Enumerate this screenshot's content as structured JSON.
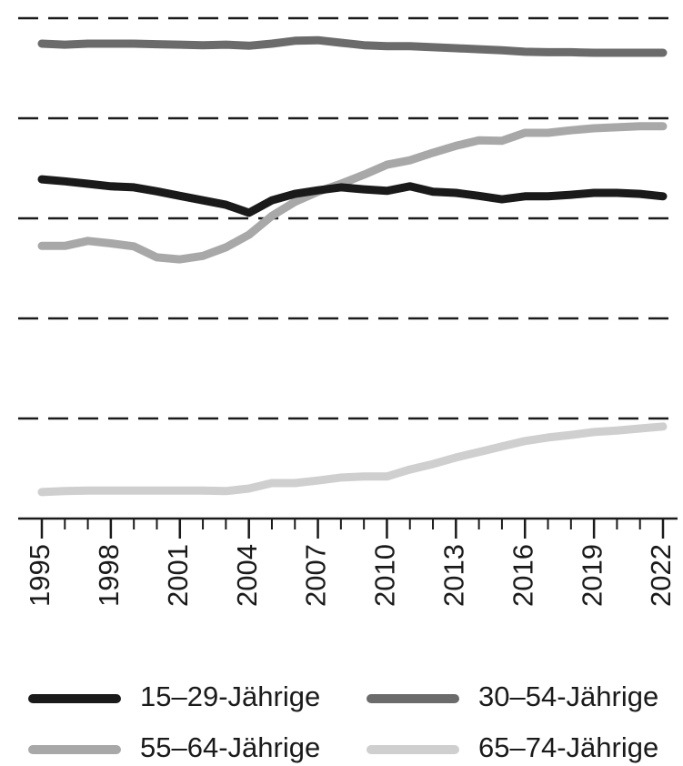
{
  "chart_data": {
    "type": "line",
    "x": [
      1995,
      1996,
      1997,
      1998,
      1999,
      2000,
      2001,
      2002,
      2003,
      2004,
      2005,
      2006,
      2007,
      2008,
      2009,
      2010,
      2011,
      2012,
      2013,
      2014,
      2015,
      2016,
      2017,
      2018,
      2019,
      2020,
      2021,
      2022
    ],
    "xlim": [
      1995,
      2022
    ],
    "xticks": [
      1995,
      1998,
      2001,
      2004,
      2007,
      2010,
      2013,
      2016,
      2019,
      2022
    ],
    "ylim": [
      0,
      100
    ],
    "yticks": [
      20,
      40,
      60,
      80,
      100
    ],
    "grid": true,
    "series": [
      {
        "name": "15–29-Jährige",
        "color": "#1a1a1a",
        "values": [
          67.8,
          67.4,
          66.9,
          66.4,
          66.2,
          65.4,
          64.5,
          63.6,
          62.7,
          61.1,
          63.6,
          64.9,
          65.6,
          66.2,
          65.8,
          65.5,
          66.4,
          65.3,
          65.1,
          64.5,
          63.8,
          64.4,
          64.4,
          64.7,
          65.1,
          65.1,
          64.9,
          64.4
        ]
      },
      {
        "name": "30–54-Jährige",
        "color": "#6b6b6b",
        "values": [
          94.9,
          94.7,
          94.9,
          94.9,
          94.9,
          94.8,
          94.7,
          94.6,
          94.7,
          94.5,
          94.9,
          95.5,
          95.6,
          95.1,
          94.6,
          94.4,
          94.4,
          94.2,
          94.0,
          93.8,
          93.6,
          93.3,
          93.2,
          93.2,
          93.1,
          93.1,
          93.1,
          93.1
        ]
      },
      {
        "name": "55–64-Jährige",
        "color": "#a8a8a8",
        "values": [
          54.5,
          54.5,
          55.5,
          55.0,
          54.4,
          52.2,
          51.8,
          52.5,
          54.2,
          56.7,
          60.5,
          63.3,
          65.3,
          66.9,
          68.7,
          70.7,
          71.6,
          73.1,
          74.5,
          75.6,
          75.5,
          77.1,
          77.1,
          77.6,
          78.0,
          78.2,
          78.4,
          78.4
        ]
      },
      {
        "name": "65–74-Jährige",
        "color": "#cfcfcf",
        "values": [
          5.3,
          5.5,
          5.6,
          5.6,
          5.6,
          5.6,
          5.6,
          5.6,
          5.5,
          6.0,
          7.1,
          7.1,
          7.6,
          8.2,
          8.4,
          8.4,
          9.8,
          10.9,
          12.2,
          13.3,
          14.4,
          15.5,
          16.2,
          16.7,
          17.3,
          17.6,
          18.0,
          18.4
        ]
      }
    ]
  }
}
